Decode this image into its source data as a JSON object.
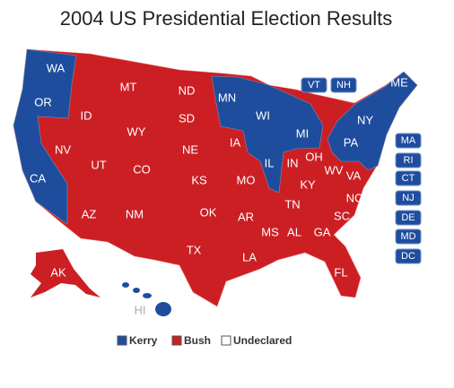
{
  "title": "2004 US Presidential Election Results",
  "states": [
    "WA",
    "OR",
    "CA",
    "NV",
    "ID",
    "MT",
    "WY",
    "UT",
    "CO",
    "AZ",
    "NM",
    "ND",
    "SD",
    "NE",
    "KS",
    "OK",
    "TX",
    "MN",
    "IA",
    "MO",
    "AR",
    "LA",
    "WI",
    "IL",
    "MI",
    "IN",
    "OH",
    "KY",
    "TN",
    "MS",
    "AL",
    "GA",
    "FL",
    "SC",
    "NC",
    "VA",
    "WV",
    "PA",
    "NY",
    "ME",
    "AK",
    "HI"
  ],
  "small_states": [
    "VT",
    "NH",
    "MA",
    "RI",
    "CT",
    "NJ",
    "DE",
    "MD",
    "DC"
  ],
  "legend": [
    {
      "label": "Kerry",
      "color": "#1f4d9e"
    },
    {
      "label": "Bush",
      "color": "#cc1f24"
    },
    {
      "label": "Undeclared",
      "color": "#ffffff"
    }
  ]
}
